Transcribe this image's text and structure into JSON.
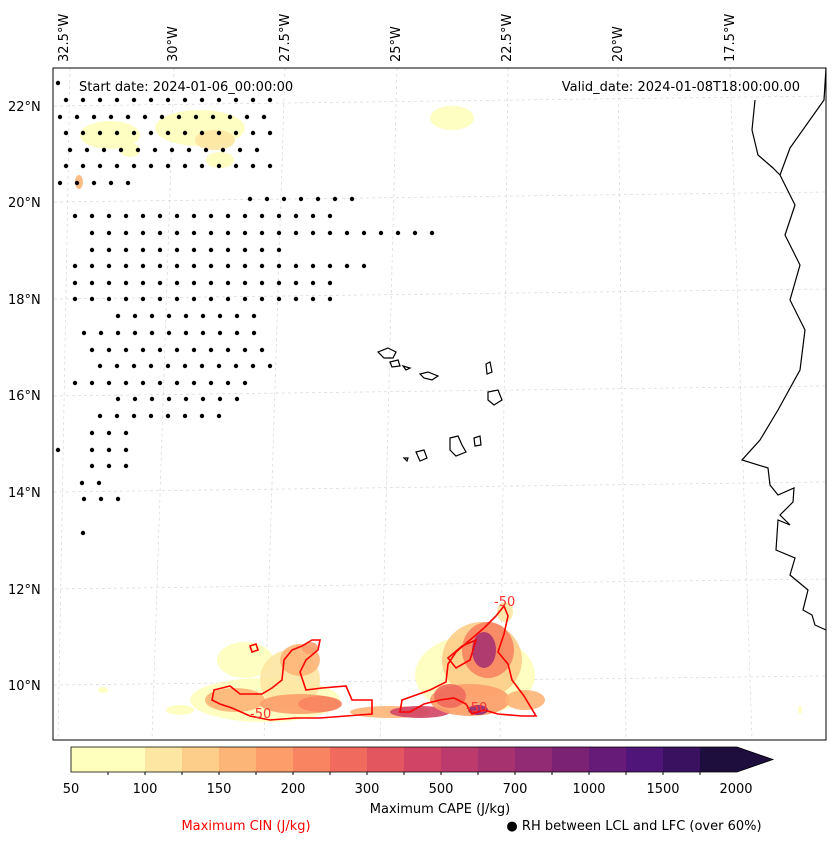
{
  "header": {
    "start_date": "Start date: 2024-01-06_00:00:00",
    "valid_date": "Valid_date: 2024-01-08T18:00:00.00"
  },
  "axes": {
    "lon_labels": [
      "32.5°W",
      "30°W",
      "27.5°W",
      "25°W",
      "22.5°W",
      "20°W",
      "17.5°W"
    ],
    "lat_labels": [
      "22°N",
      "20°N",
      "18°N",
      "16°N",
      "14°N",
      "12°N",
      "10°N"
    ]
  },
  "contour": {
    "label": "-50"
  },
  "colorbar": {
    "levels": [
      "50",
      "100",
      "150",
      "200",
      "300",
      "500",
      "700",
      "1000",
      "1500",
      "2000"
    ],
    "title": "Maximum CAPE (J/kg)",
    "colors": [
      "#fefebd",
      "#fde6a2",
      "#fdcd8a",
      "#fdb577",
      "#fc9d6a",
      "#f88461",
      "#f06b5d",
      "#e35660",
      "#d14465",
      "#bd3a6c",
      "#a73270",
      "#922b74",
      "#7c2275",
      "#661b78",
      "#501579",
      "#3a1060",
      "#1e0e3e"
    ]
  },
  "legend": {
    "cin_label": "Maximum CIN (J/kg)",
    "cin_color": "#ff0000",
    "rh_label": "● RH between LCL and LFC (over 60%)"
  }
}
